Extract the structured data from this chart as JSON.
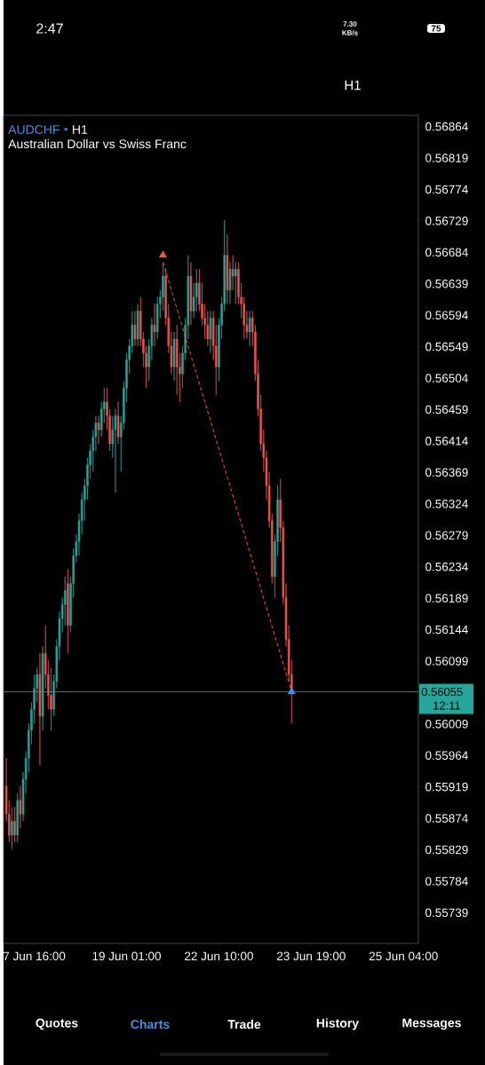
{
  "chart_data": {
    "type": "candlestick",
    "title": "AUDCHF",
    "subtitle": "Australian Dollar vs Swiss Franc",
    "annotations": [
      "12:11",
      "2:47",
      "7.30 KB/s",
      "75",
      "H1",
      "H1",
      "Quotes",
      "Charts",
      "Trade",
      "History",
      "Messages"
    ],
    "categories": [
      null,
      null,
      null,
      null,
      null,
      null,
      null,
      null,
      null,
      null,
      "7 Jun 16:00",
      null,
      null,
      null,
      null,
      null,
      null,
      null,
      null,
      null,
      null,
      null,
      null,
      null,
      null,
      null,
      null,
      null,
      null,
      null,
      null,
      null,
      null,
      null,
      null,
      null,
      null,
      null,
      null,
      null,
      null,
      null,
      null,
      "19 Jun 01:00",
      null,
      null,
      null,
      null,
      null,
      null,
      null,
      null,
      null,
      null,
      null,
      null,
      null,
      null,
      null,
      null,
      null,
      null,
      null,
      null,
      null,
      null,
      null,
      null,
      null,
      null,
      null,
      null,
      null,
      null,
      null,
      null,
      "22 Jun 10:00",
      null,
      null,
      null,
      null,
      null,
      null,
      null,
      null,
      null,
      null,
      null,
      null,
      null,
      null,
      null,
      null,
      null,
      null,
      null,
      null,
      null,
      null,
      null,
      null,
      null,
      null,
      null,
      null,
      null,
      null,
      null,
      null,
      "23 Jun 19:00",
      null,
      null,
      null,
      null,
      null,
      null,
      null,
      null,
      null,
      null,
      null,
      null,
      null,
      null,
      null,
      null,
      null,
      null,
      null,
      null,
      null,
      null,
      null,
      null,
      null,
      null,
      null,
      null,
      null,
      null,
      null,
      null,
      "25 Jun 04:00",
      null,
      null,
      null,
      null,
      null
    ],
    "ohlc": [
      [
        0.5592,
        0.5596,
        0.5587,
        0.5588
      ],
      [
        0.5588,
        0.559,
        0.5584,
        0.5585
      ],
      [
        0.5585,
        0.5589,
        0.5583,
        0.5587
      ],
      [
        0.5587,
        0.5589,
        0.5584,
        0.5585
      ],
      [
        0.5585,
        0.5591,
        0.5584,
        0.559
      ],
      [
        0.559,
        0.5592,
        0.5586,
        0.5588
      ],
      [
        0.5588,
        0.5594,
        0.5587,
        0.5593
      ],
      [
        0.5593,
        0.5597,
        0.5591,
        0.5596
      ],
      [
        0.5596,
        0.5601,
        0.5594,
        0.56
      ],
      [
        0.56,
        0.5604,
        0.5598,
        0.5603
      ],
      [
        0.5603,
        0.5608,
        0.5601,
        0.5606
      ],
      [
        0.5606,
        0.5609,
        0.5604,
        0.5608
      ],
      [
        0.5608,
        0.5611,
        0.5595,
        0.5602
      ],
      [
        0.5602,
        0.5612,
        0.56,
        0.5611
      ],
      [
        0.5611,
        0.5615,
        0.5606,
        0.5608
      ],
      [
        0.5608,
        0.561,
        0.5603,
        0.5605
      ],
      [
        0.5605,
        0.5609,
        0.56,
        0.5603
      ],
      [
        0.5603,
        0.5608,
        0.5602,
        0.5607
      ],
      [
        0.5607,
        0.5613,
        0.5606,
        0.5612
      ],
      [
        0.5612,
        0.5617,
        0.561,
        0.5616
      ],
      [
        0.5616,
        0.5619,
        0.5614,
        0.5618
      ],
      [
        0.5618,
        0.5622,
        0.5615,
        0.562
      ],
      [
        0.5621,
        0.5623,
        0.5611,
        0.5615
      ],
      [
        0.5615,
        0.5622,
        0.5614,
        0.5621
      ],
      [
        0.5621,
        0.5626,
        0.5619,
        0.5625
      ],
      [
        0.5625,
        0.5628,
        0.5624,
        0.5627
      ],
      [
        0.5627,
        0.5631,
        0.5625,
        0.563
      ],
      [
        0.563,
        0.5634,
        0.5628,
        0.5633
      ],
      [
        0.5633,
        0.5636,
        0.563,
        0.5635
      ],
      [
        0.5635,
        0.5639,
        0.5633,
        0.5638
      ],
      [
        0.5638,
        0.5641,
        0.5636,
        0.564
      ],
      [
        0.564,
        0.5643,
        0.5637,
        0.5642
      ],
      [
        0.5642,
        0.5645,
        0.564,
        0.5644
      ],
      [
        0.5644,
        0.5645,
        0.5641,
        0.5643
      ],
      [
        0.5643,
        0.5647,
        0.5642,
        0.5646
      ],
      [
        0.5646,
        0.5649,
        0.5644,
        0.5647
      ],
      [
        0.5647,
        0.5649,
        0.5643,
        0.5645
      ],
      [
        0.5645,
        0.5646,
        0.564,
        0.5641
      ],
      [
        0.5641,
        0.5645,
        0.5639,
        0.5643
      ],
      [
        0.5643,
        0.5646,
        0.5634,
        0.5645
      ],
      [
        0.5645,
        0.5647,
        0.5641,
        0.5642
      ],
      [
        0.5642,
        0.5645,
        0.5637,
        0.5644
      ],
      [
        0.5644,
        0.565,
        0.5643,
        0.5649
      ],
      [
        0.5649,
        0.5654,
        0.5647,
        0.5653
      ],
      [
        0.5653,
        0.5656,
        0.5651,
        0.5655
      ],
      [
        0.5655,
        0.566,
        0.5654,
        0.5658
      ],
      [
        0.5658,
        0.566,
        0.5655,
        0.5656
      ],
      [
        0.5656,
        0.5661,
        0.5655,
        0.566
      ],
      [
        0.566,
        0.5662,
        0.5655,
        0.5656
      ],
      [
        0.5656,
        0.5657,
        0.5652,
        0.5654
      ],
      [
        0.5654,
        0.5655,
        0.5649,
        0.5652
      ],
      [
        0.5652,
        0.5656,
        0.565,
        0.5655
      ],
      [
        0.5655,
        0.5659,
        0.5653,
        0.5658
      ],
      [
        0.5658,
        0.5661,
        0.5655,
        0.5657
      ],
      [
        0.5657,
        0.5662,
        0.5656,
        0.5661
      ],
      [
        0.5661,
        0.5663,
        0.5659,
        0.5662
      ],
      [
        0.5662,
        0.5667,
        0.566,
        0.5665
      ],
      [
        0.5665,
        0.5666,
        0.5658,
        0.5659
      ],
      [
        0.5659,
        0.5661,
        0.5654,
        0.5655
      ],
      [
        0.5655,
        0.5657,
        0.5651,
        0.5652
      ],
      [
        0.5652,
        0.5657,
        0.565,
        0.5656
      ],
      [
        0.5656,
        0.5658,
        0.5648,
        0.5652
      ],
      [
        0.5652,
        0.5654,
        0.5647,
        0.5651
      ],
      [
        0.5651,
        0.5655,
        0.5649,
        0.5654
      ],
      [
        0.5654,
        0.5659,
        0.5653,
        0.5658
      ],
      [
        0.5658,
        0.5668,
        0.5656,
        0.5665
      ],
      [
        0.5665,
        0.5667,
        0.5658,
        0.566
      ],
      [
        0.566,
        0.5664,
        0.5659,
        0.5662
      ],
      [
        0.5662,
        0.5666,
        0.566,
        0.5664
      ],
      [
        0.5664,
        0.5666,
        0.566,
        0.5661
      ],
      [
        0.5661,
        0.5664,
        0.5658,
        0.5659
      ],
      [
        0.5659,
        0.5661,
        0.5656,
        0.5658
      ],
      [
        0.5658,
        0.566,
        0.5655,
        0.5656
      ],
      [
        0.5656,
        0.566,
        0.5654,
        0.5659
      ],
      [
        0.5659,
        0.566,
        0.5653,
        0.5655
      ],
      [
        0.5655,
        0.5658,
        0.5648,
        0.5652
      ],
      [
        0.5652,
        0.5659,
        0.565,
        0.5658
      ],
      [
        0.5658,
        0.5662,
        0.5656,
        0.5661
      ],
      [
        0.5661,
        0.5673,
        0.566,
        0.5668
      ],
      [
        0.5668,
        0.5671,
        0.5661,
        0.5663
      ],
      [
        0.5663,
        0.5667,
        0.5661,
        0.5666
      ],
      [
        0.5666,
        0.5668,
        0.5663,
        0.5665
      ],
      [
        0.5665,
        0.5667,
        0.5661,
        0.5666
      ],
      [
        0.5666,
        0.5667,
        0.5661,
        0.5662
      ],
      [
        0.5662,
        0.5664,
        0.5659,
        0.5661
      ],
      [
        0.5661,
        0.5662,
        0.5656,
        0.5658
      ],
      [
        0.5658,
        0.566,
        0.5656,
        0.5657
      ],
      [
        0.5657,
        0.566,
        0.5655,
        0.5659
      ],
      [
        0.5659,
        0.566,
        0.5655,
        0.5657
      ],
      [
        0.5657,
        0.5658,
        0.565,
        0.5651
      ],
      [
        0.5651,
        0.5653,
        0.5645,
        0.5646
      ],
      [
        0.5646,
        0.5648,
        0.564,
        0.5641
      ],
      [
        0.5641,
        0.5643,
        0.5637,
        0.5639
      ],
      [
        0.5639,
        0.564,
        0.5633,
        0.5635
      ],
      [
        0.5635,
        0.5637,
        0.5629,
        0.563
      ],
      [
        0.563,
        0.5631,
        0.5621,
        0.5622
      ],
      [
        0.5622,
        0.5628,
        0.5619,
        0.5627
      ],
      [
        0.5627,
        0.5635,
        0.5625,
        0.5633
      ],
      [
        0.5633,
        0.5636,
        0.5627,
        0.5629
      ],
      [
        0.5629,
        0.563,
        0.5618,
        0.5619
      ],
      [
        0.5619,
        0.5621,
        0.5612,
        0.5613
      ],
      [
        0.5613,
        0.5615,
        0.5607,
        0.5608
      ],
      [
        0.5608,
        0.561,
        0.5601,
        0.56055
      ],
      null,
      null,
      null,
      null,
      null,
      null,
      null,
      null,
      null,
      null,
      null,
      null,
      null,
      null,
      null,
      null,
      null,
      null,
      null,
      null,
      null,
      null,
      null,
      null,
      null,
      null,
      null,
      null,
      null,
      null,
      null,
      null,
      null,
      null,
      null,
      null,
      null,
      null,
      null,
      null,
      null,
      null,
      null,
      null,
      null
    ],
    "colors": [
      "#ef5350",
      "#ef5350",
      "#26a69a",
      "#ef5350",
      "#26a69a",
      "#ef5350",
      "#26a69a",
      "#26a69a",
      "#26a69a",
      "#26a69a",
      "#26a69a",
      "#26a69a",
      "#ef5350",
      "#26a69a",
      "#ef5350",
      "#ef5350",
      "#ef5350",
      "#26a69a",
      "#26a69a",
      "#26a69a",
      "#26a69a",
      "#26a69a",
      "#ef5350",
      "#26a69a",
      "#26a69a",
      "#26a69a",
      "#26a69a",
      "#26a69a",
      "#26a69a",
      "#26a69a",
      "#26a69a",
      "#26a69a",
      "#26a69a",
      "#ef5350",
      "#26a69a",
      "#26a69a",
      "#ef5350",
      "#ef5350",
      "#26a69a",
      "#26a69a",
      "#ef5350",
      "#26a69a",
      "#26a69a",
      "#26a69a",
      "#26a69a",
      "#26a69a",
      "#ef5350",
      "#26a69a",
      "#ef5350",
      "#ef5350",
      "#ef5350",
      "#26a69a",
      "#26a69a",
      "#ef5350",
      "#26a69a",
      "#26a69a",
      "#26a69a",
      "#ef5350",
      "#ef5350",
      "#ef5350",
      "#26a69a",
      "#ef5350",
      "#ef5350",
      "#26a69a",
      "#26a69a",
      "#26a69a",
      "#ef5350",
      "#26a69a",
      "#26a69a",
      "#ef5350",
      "#ef5350",
      "#ef5350",
      "#ef5350",
      "#26a69a",
      "#ef5350",
      "#ef5350",
      "#26a69a",
      "#26a69a",
      "#26a69a",
      "#ef5350",
      "#26a69a",
      "#ef5350",
      "#26a69a",
      "#ef5350",
      "#ef5350",
      "#ef5350",
      "#ef5350",
      "#26a69a",
      "#ef5350",
      "#ef5350",
      "#ef5350",
      "#ef5350",
      "#ef5350",
      "#ef5350",
      "#ef5350",
      "#ef5350",
      "#26a69a",
      "#26a69a",
      "#ef5350",
      "#ef5350",
      "#ef5350",
      "#ef5350",
      "#ef5350",
      null,
      null,
      null,
      null,
      null,
      null,
      null,
      null,
      null,
      null,
      null,
      null,
      null,
      null,
      null,
      null,
      null,
      null,
      null,
      null,
      null,
      null,
      null,
      null,
      null,
      null,
      null,
      null,
      null,
      null,
      null,
      null,
      null,
      null,
      null,
      null,
      null,
      null,
      null,
      null,
      null,
      null,
      null,
      null,
      null
    ],
    "series": [
      {
        "type": "line",
        "color": "#ef5350",
        "line_style": "dashed",
        "values": [
          null,
          null,
          null,
          null,
          null,
          null,
          null,
          null,
          null,
          null,
          null,
          null,
          null,
          null,
          null,
          null,
          null,
          null,
          null,
          null,
          null,
          null,
          null,
          null,
          null,
          null,
          null,
          null,
          null,
          null,
          null,
          null,
          null,
          null,
          null,
          null,
          null,
          null,
          null,
          null,
          null,
          null,
          null,
          null,
          null,
          null,
          null,
          null,
          null,
          null,
          null,
          null,
          null,
          null,
          null,
          null,
          0.5667,
          null,
          null,
          null,
          null,
          null,
          null,
          null,
          null,
          null,
          null,
          null,
          null,
          null,
          null,
          null,
          null,
          null,
          null,
          null,
          null,
          null,
          null,
          null,
          null,
          null,
          null,
          null,
          null,
          null,
          null,
          null,
          null,
          null,
          null,
          null,
          null,
          null,
          null,
          null,
          null,
          null,
          null,
          null,
          null,
          null,
          0.56055,
          null,
          null,
          null,
          null,
          null,
          null,
          null,
          null,
          null,
          null,
          null,
          null,
          null,
          null,
          null,
          null,
          null,
          null,
          null,
          null,
          null,
          null,
          null,
          null,
          null,
          null,
          null,
          null,
          null,
          null,
          null,
          null,
          null,
          null,
          null,
          null,
          null,
          null,
          null,
          null,
          null,
          null,
          null,
          null,
          null
        ]
      },
      {
        "type": "scatter",
        "color": "#ef5350",
        "marker": "triangle",
        "values": [
          null,
          null,
          null,
          null,
          null,
          null,
          null,
          null,
          null,
          null,
          null,
          null,
          null,
          null,
          null,
          null,
          null,
          null,
          null,
          null,
          null,
          null,
          null,
          null,
          null,
          null,
          null,
          null,
          null,
          null,
          null,
          null,
          null,
          null,
          null,
          null,
          null,
          null,
          null,
          null,
          null,
          null,
          null,
          null,
          null,
          null,
          null,
          null,
          null,
          null,
          null,
          null,
          null,
          null,
          null,
          null,
          0.5668,
          null,
          null,
          null,
          null,
          null,
          null,
          null,
          null,
          null,
          null,
          null,
          null,
          null,
          null,
          null,
          null,
          null,
          null,
          null,
          null,
          null,
          null,
          null,
          null,
          null,
          null,
          null,
          null,
          null,
          null,
          null,
          null,
          null,
          null,
          null,
          null,
          null,
          null,
          null,
          null,
          null,
          null,
          null,
          null,
          null,
          null,
          null,
          null,
          null,
          null,
          null,
          null,
          null,
          null,
          null,
          null,
          null,
          null,
          null,
          null,
          null,
          null,
          null,
          null,
          null,
          null,
          null,
          null,
          null,
          null,
          null,
          null,
          null,
          null,
          null,
          null,
          null,
          null,
          null,
          null,
          null,
          null,
          null,
          null,
          null,
          null,
          null,
          null,
          null,
          null,
          null
        ]
      },
      {
        "type": "scatter",
        "color": "#3d8bff",
        "marker": "triangle",
        "values": [
          null,
          null,
          null,
          null,
          null,
          null,
          null,
          null,
          null,
          null,
          null,
          null,
          null,
          null,
          null,
          null,
          null,
          null,
          null,
          null,
          null,
          null,
          null,
          null,
          null,
          null,
          null,
          null,
          null,
          null,
          null,
          null,
          null,
          null,
          null,
          null,
          null,
          null,
          null,
          null,
          null,
          null,
          null,
          null,
          null,
          null,
          null,
          null,
          null,
          null,
          null,
          null,
          null,
          null,
          null,
          null,
          null,
          null,
          null,
          null,
          null,
          null,
          null,
          null,
          null,
          null,
          null,
          null,
          null,
          null,
          null,
          null,
          null,
          null,
          null,
          null,
          null,
          null,
          null,
          null,
          null,
          null,
          null,
          null,
          null,
          null,
          null,
          null,
          null,
          null,
          null,
          null,
          null,
          null,
          null,
          null,
          null,
          null,
          null,
          null,
          null,
          null,
          0.56055,
          null,
          null,
          null,
          null,
          null,
          null,
          null,
          null,
          null,
          null,
          null,
          null,
          null,
          null,
          null,
          null,
          null,
          null,
          null,
          null,
          null,
          null,
          null,
          null,
          null,
          null,
          null,
          null,
          null,
          null,
          null,
          null,
          null,
          null,
          null,
          null,
          null,
          null,
          null,
          null,
          null,
          null,
          null,
          null,
          null
        ]
      }
    ],
    "ref_lines": [
      {
        "axis": "y",
        "value": 0.56055,
        "label": "0.56055",
        "color": "#26a69a"
      }
    ],
    "ylim": [
      0.55695,
      0.5688
    ],
    "yticks": [
      0.56864,
      0.56819,
      0.56774,
      0.56729,
      0.56684,
      0.56639,
      0.56594,
      0.56549,
      0.56504,
      0.56459,
      0.56414,
      0.56369,
      0.56324,
      0.56279,
      0.56234,
      0.56189,
      0.56144,
      0.56099,
      0.56009,
      0.55964,
      0.55919,
      0.55874,
      0.55829,
      0.55784,
      0.55739
    ]
  }
}
